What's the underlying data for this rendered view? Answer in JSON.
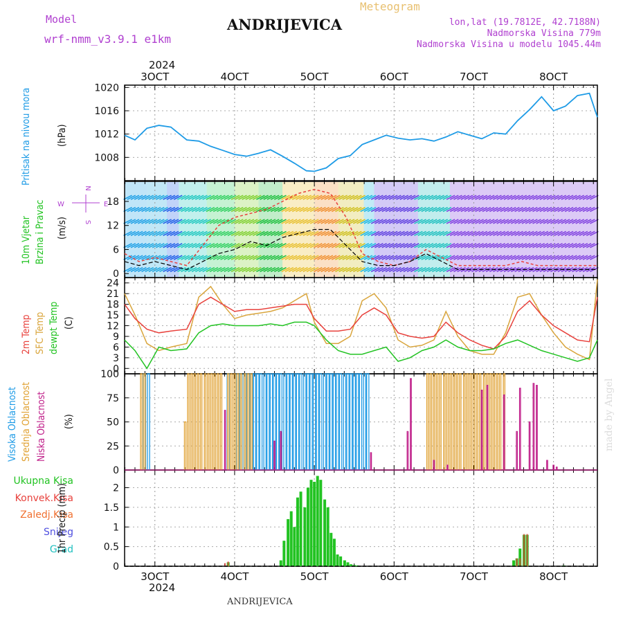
{
  "header": {
    "model_label": "Model",
    "model_name": "wrf-nmm_v3.9.1  e1km",
    "title": "ANDRIJEVICA",
    "meteogram_label": "Meteogram",
    "lonlat": "lon,lat (19.7812E, 42.7188N)",
    "elevation": "Nadmorska Visina 779m",
    "model_elevation": "Nadmorska Visina u modelu 1045.44m",
    "year_top": "2024",
    "year_bottom": "2024",
    "footer_title": "ANDRIJEVICA",
    "watermark": "made by Angel"
  },
  "colors": {
    "pressure": "#1e9be6",
    "temp2m": "#e8413c",
    "sfc": "#d9a53c",
    "dewpt": "#22c322",
    "high_cloud": "#1e9be6",
    "mid_cloud": "#e0a030",
    "low_cloud": "#c0208a",
    "total_precip": "#22c322",
    "conv_precip": "#e8413c",
    "frz_precip": "#f07030",
    "snow": "#5050e0",
    "hail": "#20c0c0",
    "wind_label": "#22c322",
    "purple_text": "#b040d0",
    "gold_text": "#e8c070"
  },
  "chart_data": [
    {
      "type": "line",
      "panel": "pressure",
      "ylabel_lines": [
        "Pritisak na nivou mora",
        "(hPa)"
      ],
      "xticks": [
        "3OCT",
        "4OCT",
        "5OCT",
        "6OCT",
        "7OCT",
        "8OCT"
      ],
      "x_unit": "days since 2024-10-01 00:00",
      "xlim": [
        1.62,
        7.55
      ],
      "ylim": [
        1004.0,
        1020.4
      ],
      "yticks": [
        1008,
        1012,
        1016,
        1020
      ],
      "grid": true,
      "series": [
        {
          "name": "Pritisak na nivou mora",
          "x": [
            1.62,
            1.75,
            1.9,
            2.05,
            2.2,
            2.4,
            2.55,
            2.7,
            2.85,
            3.0,
            3.15,
            3.3,
            3.45,
            3.6,
            3.75,
            3.9,
            4.0,
            4.15,
            4.3,
            4.45,
            4.6,
            4.75,
            4.9,
            5.05,
            5.2,
            5.35,
            5.5,
            5.65,
            5.8,
            5.95,
            6.1,
            6.25,
            6.4,
            6.55,
            6.7,
            6.85,
            7.0,
            7.15,
            7.3,
            7.45,
            7.55
          ],
          "values": [
            1011.8,
            1011.0,
            1013.0,
            1013.5,
            1013.2,
            1011.0,
            1010.8,
            1009.9,
            1009.2,
            1008.5,
            1008.2,
            1008.7,
            1009.3,
            1008.2,
            1007.0,
            1005.7,
            1005.6,
            1006.2,
            1007.8,
            1008.3,
            1010.2,
            1011.0,
            1011.8,
            1011.3,
            1011.0,
            1011.2,
            1010.8,
            1011.5,
            1012.4,
            1011.8,
            1011.2,
            1012.2,
            1012.0,
            1014.3,
            1016.2,
            1018.4,
            1016.0,
            1016.8,
            1018.6,
            1019.0,
            1014.9
          ]
        }
      ]
    },
    {
      "type": "line",
      "panel": "wind",
      "ylabel_lines": [
        "10m Vjetar",
        "Brzina i Pravac",
        "(m/s)"
      ],
      "compass": [
        "N",
        "W",
        "E",
        "S"
      ],
      "xlim": [
        1.62,
        7.55
      ],
      "ylim": [
        -1,
        23
      ],
      "yticks": [
        0,
        6,
        12,
        18
      ],
      "grid": true,
      "series": [
        {
          "name": "speed",
          "x": [
            1.62,
            1.8,
            2.0,
            2.2,
            2.4,
            2.6,
            2.8,
            3.0,
            3.2,
            3.4,
            3.6,
            3.8,
            4.0,
            4.2,
            4.4,
            4.6,
            4.8,
            5.0,
            5.2,
            5.4,
            5.6,
            5.8,
            6.0,
            6.2,
            6.4,
            6.6,
            6.8,
            7.0,
            7.2,
            7.4,
            7.55
          ],
          "values": [
            3,
            2,
            3,
            2,
            1,
            3,
            5,
            6,
            8,
            7,
            9,
            10,
            11,
            11,
            7,
            3,
            2,
            2,
            3,
            5,
            3,
            1,
            1,
            1,
            1,
            1,
            1,
            1,
            1,
            1,
            1
          ]
        },
        {
          "name": "gust",
          "x": [
            1.62,
            1.8,
            2.0,
            2.2,
            2.4,
            2.6,
            2.8,
            3.0,
            3.2,
            3.4,
            3.6,
            3.8,
            4.0,
            4.2,
            4.4,
            4.6,
            4.8,
            5.0,
            5.2,
            5.4,
            5.6,
            5.8,
            6.0,
            6.2,
            6.4,
            6.6,
            6.8,
            7.0,
            7.2,
            7.4,
            7.55
          ],
          "values": [
            5,
            3,
            4,
            3,
            2,
            7,
            12,
            14,
            15,
            16,
            18,
            20,
            21,
            20,
            14,
            5,
            3,
            2,
            3,
            6,
            4,
            2,
            2,
            2,
            2,
            3,
            2,
            2,
            2,
            2,
            2
          ]
        }
      ]
    },
    {
      "type": "line",
      "panel": "temperature",
      "ylabel_lines": [
        "2m Temp",
        "SFC Temp",
        "dewpt Temp",
        "(C)"
      ],
      "xlim": [
        1.62,
        7.55
      ],
      "ylim": [
        -1.5,
        25.5
      ],
      "yticks": [
        0,
        3,
        6,
        9,
        12,
        15,
        18,
        21,
        24
      ],
      "grid": true,
      "series": [
        {
          "name": "2m Temp",
          "x": [
            1.62,
            1.75,
            1.9,
            2.05,
            2.2,
            2.4,
            2.55,
            2.7,
            2.85,
            3.0,
            3.15,
            3.3,
            3.45,
            3.6,
            3.75,
            3.9,
            4.0,
            4.15,
            4.3,
            4.45,
            4.6,
            4.75,
            4.9,
            5.05,
            5.2,
            5.35,
            5.5,
            5.65,
            5.8,
            5.95,
            6.1,
            6.25,
            6.4,
            6.55,
            6.7,
            6.85,
            7.0,
            7.15,
            7.3,
            7.45,
            7.55
          ],
          "values": [
            18,
            14,
            11,
            10,
            10.5,
            11,
            18,
            20,
            18,
            16,
            16.5,
            16.5,
            17,
            17.5,
            18,
            18,
            14,
            10.5,
            10.5,
            11,
            15,
            17,
            15,
            10,
            9,
            8.5,
            9,
            13,
            10,
            8,
            6.5,
            5.5,
            9,
            16,
            19,
            15,
            12,
            10,
            8,
            7.5,
            20
          ]
        },
        {
          "name": "SFC Temp",
          "x": [
            1.62,
            1.75,
            1.9,
            2.05,
            2.2,
            2.4,
            2.55,
            2.7,
            2.85,
            3.0,
            3.15,
            3.3,
            3.45,
            3.6,
            3.75,
            3.9,
            4.0,
            4.15,
            4.3,
            4.45,
            4.6,
            4.75,
            4.9,
            5.05,
            5.2,
            5.35,
            5.5,
            5.65,
            5.8,
            5.95,
            6.1,
            6.25,
            6.4,
            6.55,
            6.7,
            6.85,
            7.0,
            7.15,
            7.3,
            7.45,
            7.55
          ],
          "values": [
            21,
            15,
            7,
            5,
            6,
            7,
            20,
            23,
            18,
            14,
            15,
            15.5,
            16,
            17,
            19,
            21,
            13,
            7,
            7,
            9,
            19,
            21,
            17,
            8,
            6,
            6.5,
            8,
            16,
            9,
            5,
            4,
            4,
            10,
            20,
            21,
            15,
            10,
            6,
            4,
            2.5,
            25
          ]
        },
        {
          "name": "dewpt Temp",
          "x": [
            1.62,
            1.75,
            1.9,
            2.05,
            2.2,
            2.4,
            2.55,
            2.7,
            2.85,
            3.0,
            3.15,
            3.3,
            3.45,
            3.6,
            3.75,
            3.9,
            4.0,
            4.15,
            4.3,
            4.45,
            4.6,
            4.75,
            4.9,
            5.05,
            5.2,
            5.35,
            5.5,
            5.65,
            5.8,
            5.95,
            6.1,
            6.25,
            6.4,
            6.55,
            6.7,
            6.85,
            7.0,
            7.15,
            7.3,
            7.45,
            7.55
          ],
          "values": [
            8,
            5,
            0,
            6,
            5,
            5.5,
            10,
            12,
            12.5,
            12,
            12,
            12,
            12.5,
            12,
            13,
            13,
            12,
            8,
            5,
            4,
            4,
            5,
            6,
            2,
            3,
            5,
            6,
            8,
            6,
            5,
            5,
            5.5,
            7,
            8,
            6.5,
            5,
            4,
            3,
            2,
            3,
            8
          ]
        }
      ]
    },
    {
      "type": "bar",
      "panel": "cloud",
      "ylabel_lines": [
        "Visoka Oblacnost",
        "Srednja Oblacnost",
        "Niska Oblacnost",
        "(%)"
      ],
      "xlim": [
        1.62,
        7.55
      ],
      "ylim": [
        0,
        100
      ],
      "yticks": [
        0,
        25,
        50,
        75,
        100
      ],
      "grid": true,
      "series": [
        {
          "name": "Visoka Oblacnost",
          "x": [
            1.87,
            1.92,
            2.92,
            3.04,
            3.08,
            3.13,
            3.17,
            3.21,
            3.25,
            3.29,
            3.33,
            3.38,
            3.42,
            3.46,
            3.5,
            3.54,
            3.58,
            3.63,
            3.67,
            3.71,
            3.75,
            3.79,
            3.83,
            3.88,
            3.92,
            3.96,
            4.0,
            4.04,
            4.08,
            4.13,
            4.17,
            4.21,
            4.25,
            4.29,
            4.33,
            4.38,
            4.42,
            4.46,
            4.5,
            4.54,
            4.58,
            4.63,
            4.67
          ],
          "values": [
            100,
            100,
            100,
            100,
            100,
            100,
            100,
            100,
            100,
            100,
            100,
            100,
            100,
            100,
            100,
            100,
            100,
            100,
            100,
            100,
            100,
            100,
            100,
            100,
            100,
            100,
            100,
            100,
            100,
            100,
            100,
            100,
            100,
            100,
            100,
            100,
            100,
            100,
            100,
            100,
            100,
            100,
            100
          ]
        },
        {
          "name": "Srednja Oblacnost",
          "x": [
            1.83,
            1.87,
            2.38,
            2.42,
            2.46,
            2.5,
            2.54,
            2.58,
            2.63,
            2.67,
            2.71,
            2.75,
            2.79,
            2.83,
            2.92,
            2.96,
            3.0,
            3.04,
            3.08,
            3.13,
            3.17,
            3.21,
            5.42,
            5.46,
            5.5,
            5.54,
            5.58,
            5.63,
            5.67,
            5.71,
            5.75,
            5.79,
            5.83,
            5.88,
            5.92,
            5.96,
            6.0,
            6.04,
            6.08,
            6.13,
            6.17,
            6.21,
            6.25,
            6.29,
            6.33,
            6.38
          ],
          "values": [
            100,
            100,
            50,
            100,
            100,
            100,
            100,
            100,
            100,
            100,
            100,
            100,
            100,
            100,
            100,
            100,
            100,
            100,
            100,
            100,
            100,
            100,
            100,
            100,
            100,
            100,
            100,
            100,
            100,
            100,
            100,
            100,
            100,
            100,
            100,
            100,
            100,
            100,
            100,
            100,
            100,
            100,
            100,
            100,
            100,
            100
          ]
        },
        {
          "name": "Niska Oblacnost",
          "x": [
            2.88,
            3.5,
            3.58,
            4.71,
            5.17,
            5.21,
            5.5,
            5.67,
            6.1,
            6.17,
            6.38,
            6.54,
            6.58,
            6.7,
            6.75,
            6.79,
            6.92,
            7.0,
            7.04
          ],
          "values": [
            62,
            30,
            40,
            18,
            40,
            95,
            10,
            5,
            83,
            88,
            78,
            40,
            85,
            50,
            90,
            88,
            10,
            5,
            3
          ]
        }
      ]
    },
    {
      "type": "bar",
      "panel": "precip",
      "ylabel_lines": [
        "1hr Precip (mm)"
      ],
      "legend": [
        "Ukupna Kisa",
        "Konvek.Kisa",
        "Zaledj.Kisa",
        "Snijeg",
        "Grad"
      ],
      "xlim": [
        1.62,
        7.55
      ],
      "ylim": [
        0,
        2.45
      ],
      "yticks": [
        0,
        0.5,
        1,
        1.5,
        2
      ],
      "grid": true,
      "series": [
        {
          "name": "Ukupna Kisa",
          "x": [
            2.92,
            3.58,
            3.62,
            3.67,
            3.71,
            3.75,
            3.79,
            3.83,
            3.88,
            3.92,
            3.96,
            4.0,
            4.04,
            4.08,
            4.13,
            4.17,
            4.21,
            4.25,
            4.29,
            4.33,
            4.38,
            4.42,
            4.46,
            4.5,
            4.54,
            6.5,
            6.54,
            6.58,
            6.63,
            6.67,
            7.13
          ],
          "values": [
            0.1,
            0.15,
            0.65,
            1.2,
            1.4,
            1.0,
            1.75,
            1.9,
            1.5,
            2.0,
            2.2,
            2.15,
            2.3,
            2.2,
            1.7,
            1.5,
            0.85,
            0.7,
            0.3,
            0.25,
            0.15,
            0.1,
            0.05,
            0.03,
            0.02,
            0.15,
            0.2,
            0.45,
            0.8,
            0.8,
            0.02
          ]
        },
        {
          "name": "Konvek.Kisa",
          "x": [
            2.88,
            2.92,
            6.54,
            6.58,
            6.63,
            6.67
          ],
          "values": [
            0.08,
            0.12,
            0.2,
            0.2,
            0.82,
            0.82
          ]
        }
      ]
    }
  ]
}
